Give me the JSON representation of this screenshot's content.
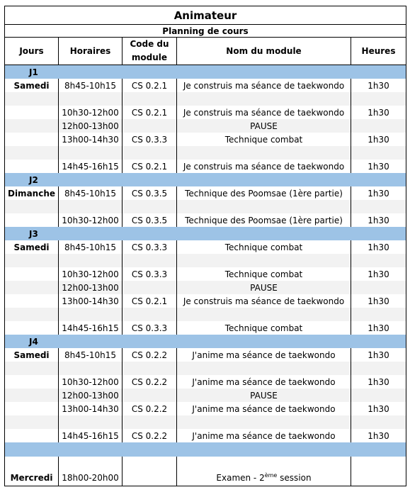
{
  "title": "Animateur",
  "subtitle": "Planning de cours",
  "headers": {
    "jours": "Jours",
    "horaires": "Horaires",
    "code_line1": "Code du",
    "code_line2": "module",
    "nom": "Nom du module",
    "heures": "Heures"
  },
  "colors": {
    "day_band": "#9dc3e6",
    "alt_row": "#f2f2f2",
    "border": "#000000"
  },
  "rows": [
    {
      "kind": "day",
      "label": "J1"
    },
    {
      "kind": "session",
      "day": "Samedi",
      "time": "8h45-10h15",
      "code": "CS 0.2.1",
      "name": "Je construis ma séance de taekwondo",
      "hours": "1h30"
    },
    {
      "kind": "blank"
    },
    {
      "kind": "session",
      "day": "",
      "time": "10h30-12h00",
      "code": "CS 0.2.1",
      "name": "Je construis ma séance de taekwondo",
      "hours": "1h30"
    },
    {
      "kind": "session",
      "day": "",
      "time": "12h00-13h00",
      "code": "",
      "name": "PAUSE",
      "hours": ""
    },
    {
      "kind": "session",
      "day": "",
      "time": "13h00-14h30",
      "code": "CS 0.3.3",
      "name": "Technique combat",
      "hours": "1h30"
    },
    {
      "kind": "blank"
    },
    {
      "kind": "session",
      "day": "",
      "time": "14h45-16h15",
      "code": "CS 0.2.1",
      "name": "Je construis ma séance de taekwondo",
      "hours": "1h30"
    },
    {
      "kind": "day",
      "label": "J2"
    },
    {
      "kind": "session",
      "day": "Dimanche",
      "time": "8h45-10h15",
      "code": "CS 0.3.5",
      "name": "Technique des Poomsae (1ère partie)",
      "hours": "1h30"
    },
    {
      "kind": "blank"
    },
    {
      "kind": "session",
      "day": "",
      "time": "10h30-12h00",
      "code": "CS 0.3.5",
      "name": "Technique des Poomsae (1ère partie)",
      "hours": "1h30"
    },
    {
      "kind": "day",
      "label": "J3"
    },
    {
      "kind": "session",
      "day": "Samedi",
      "time": "8h45-10h15",
      "code": "CS 0.3.3",
      "name": "Technique combat",
      "hours": "1h30"
    },
    {
      "kind": "blank"
    },
    {
      "kind": "session",
      "day": "",
      "time": "10h30-12h00",
      "code": "CS 0.3.3",
      "name": "Technique combat",
      "hours": "1h30"
    },
    {
      "kind": "session",
      "day": "",
      "time": "12h00-13h00",
      "code": "",
      "name": "PAUSE",
      "hours": ""
    },
    {
      "kind": "session",
      "day": "",
      "time": "13h00-14h30",
      "code": "CS 0.2.1",
      "name": "Je construis ma séance de taekwondo",
      "hours": "1h30"
    },
    {
      "kind": "blank"
    },
    {
      "kind": "session",
      "day": "",
      "time": "14h45-16h15",
      "code": "CS 0.3.3",
      "name": "Technique combat",
      "hours": "1h30"
    },
    {
      "kind": "day",
      "label": "J4"
    },
    {
      "kind": "session",
      "day": "Samedi",
      "time": "8h45-10h15",
      "code": "CS  0.2.2",
      "name": "J'anime ma séance de taekwondo",
      "hours": "1h30"
    },
    {
      "kind": "blank"
    },
    {
      "kind": "session",
      "day": "",
      "time": "10h30-12h00",
      "code": "CS  0.2.2",
      "name": "J'anime ma séance de taekwondo",
      "hours": "1h30"
    },
    {
      "kind": "session",
      "day": "",
      "time": "12h00-13h00",
      "code": "",
      "name": "PAUSE",
      "hours": ""
    },
    {
      "kind": "session",
      "day": "",
      "time": "13h00-14h30",
      "code": "CS  0.2.2",
      "name": "J'anime ma séance de taekwondo",
      "hours": "1h30"
    },
    {
      "kind": "blank"
    },
    {
      "kind": "session",
      "day": "",
      "time": "14h45-16h15",
      "code": "CS  0.2.2",
      "name": "J'anime ma séance de taekwondo",
      "hours": "1h30"
    },
    {
      "kind": "sep"
    },
    {
      "kind": "blank"
    }
  ],
  "exam": {
    "day": "Mercredi",
    "time": "18h00-20h00",
    "name_prefix": "Examen - 2",
    "name_sup": "ème",
    "name_suffix": " session"
  }
}
